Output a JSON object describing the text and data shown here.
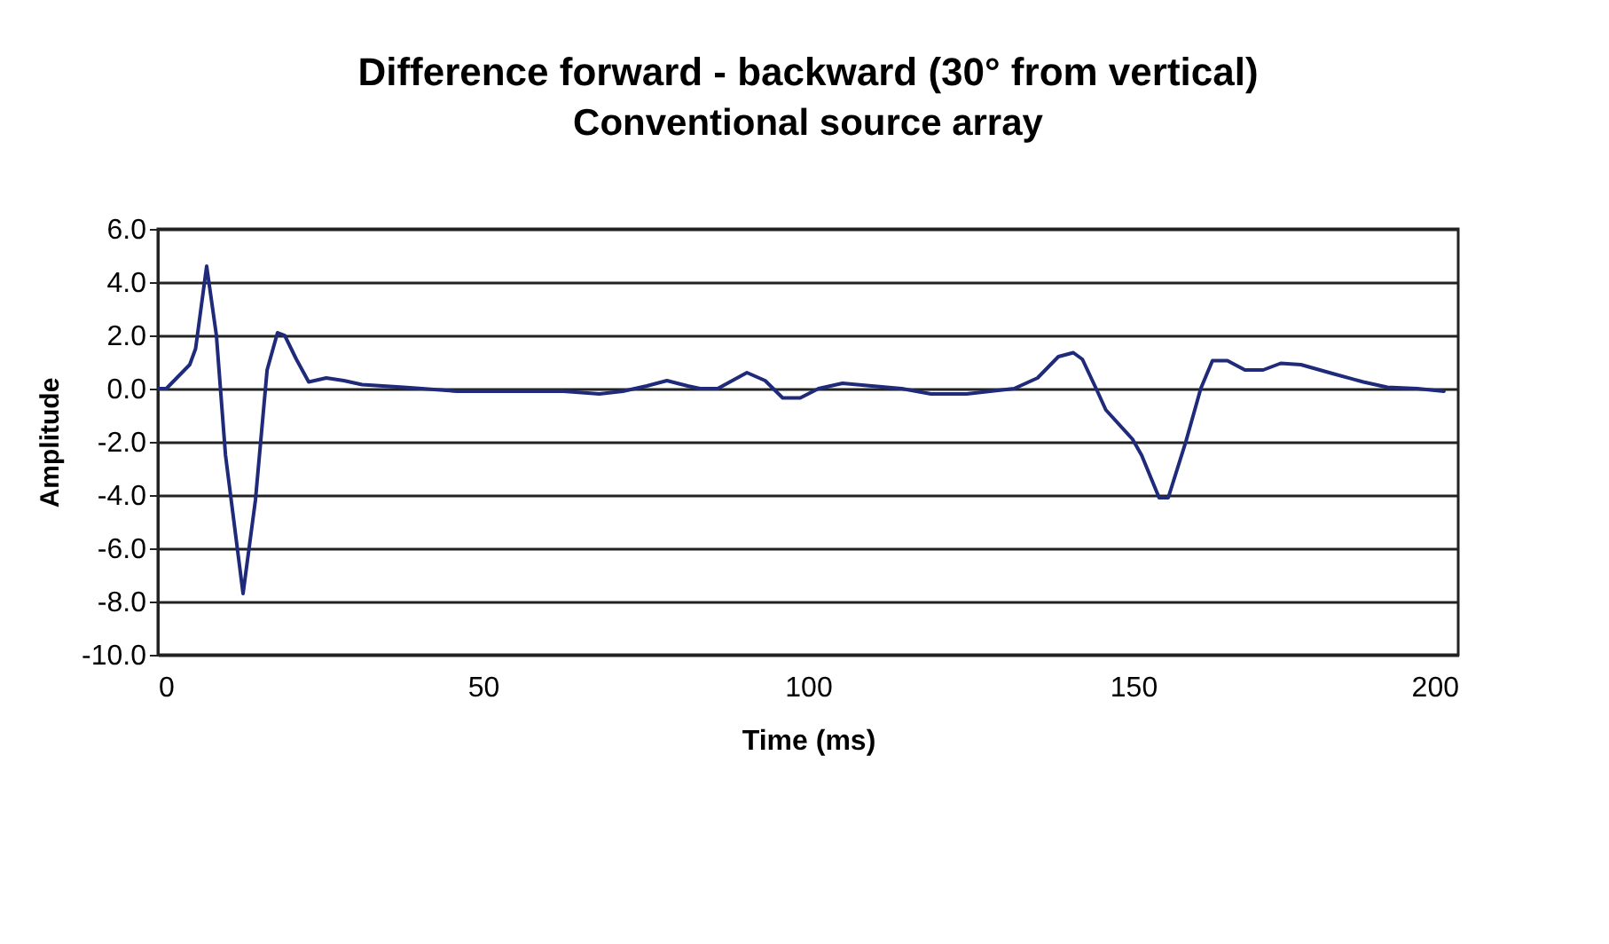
{
  "chart_data": {
    "type": "line",
    "title": "Difference forward - backward (30° from vertical)",
    "subtitle": "Conventional source array",
    "xlabel": "Time (ms)",
    "ylabel": "Amplitude",
    "x": [
      0,
      1.3,
      4.9,
      5.8,
      7.5,
      9.0,
      10.4,
      13.1,
      15.0,
      16.8,
      18.4,
      19.5,
      21.3,
      23.2,
      25.9,
      28.6,
      31.4,
      37.8,
      46.0,
      62.4,
      67.9,
      71.5,
      75.2,
      78.3,
      81.5,
      83.4,
      86.1,
      90.6,
      93.4,
      96.1,
      98.8,
      101.6,
      105.3,
      109.8,
      114.4,
      118.9,
      124.4,
      128.0,
      131.7,
      135.3,
      138.5,
      140.8,
      142.2,
      144.5,
      145.8,
      149.9,
      151.3,
      154.0,
      155.4,
      158.1,
      160.4,
      162.2,
      164.5,
      167.2,
      170.0,
      172.7,
      175.8,
      180.9,
      185.4,
      189.1,
      193.7,
      197.8
    ],
    "series": [
      {
        "color": "#1f2a7a",
        "values": [
          0,
          0,
          0.9,
          1.5,
          4.6,
          2.0,
          -2.5,
          -7.7,
          -4.2,
          0.7,
          2.1,
          2.0,
          1.1,
          0.25,
          0.4,
          0.3,
          0.15,
          0.05,
          -0.1,
          -0.1,
          -0.2,
          -0.1,
          0.1,
          0.3,
          0.1,
          0.0,
          0.0,
          0.6,
          0.3,
          -0.35,
          -0.35,
          0.0,
          0.2,
          0.1,
          0.0,
          -0.2,
          -0.2,
          -0.1,
          0.0,
          0.4,
          1.2,
          1.35,
          1.1,
          -0.1,
          -0.8,
          -1.9,
          -2.5,
          -4.1,
          -4.1,
          -2.0,
          0.0,
          1.05,
          1.05,
          0.7,
          0.7,
          0.95,
          0.9,
          0.55,
          0.25,
          0.05,
          0.0,
          -0.1
        ]
      }
    ],
    "xlim": [
      0,
      200
    ],
    "xticks": [
      0,
      50,
      100,
      150,
      200
    ],
    "ylim": [
      -10,
      6
    ],
    "yticks": [
      {
        "value": -10,
        "label": "-10.0"
      },
      {
        "value": -8,
        "label": "-8.0"
      },
      {
        "value": -6,
        "label": "-6.0"
      },
      {
        "value": -4,
        "label": "-4.0"
      },
      {
        "value": -2,
        "label": "-2.0"
      },
      {
        "value": 0,
        "label": "0.0"
      },
      {
        "value": 2,
        "label": "2.0"
      },
      {
        "value": 4,
        "label": "4.0"
      },
      {
        "value": 6,
        "label": "6.0"
      }
    ],
    "grid": "y",
    "line_style": "solid"
  }
}
